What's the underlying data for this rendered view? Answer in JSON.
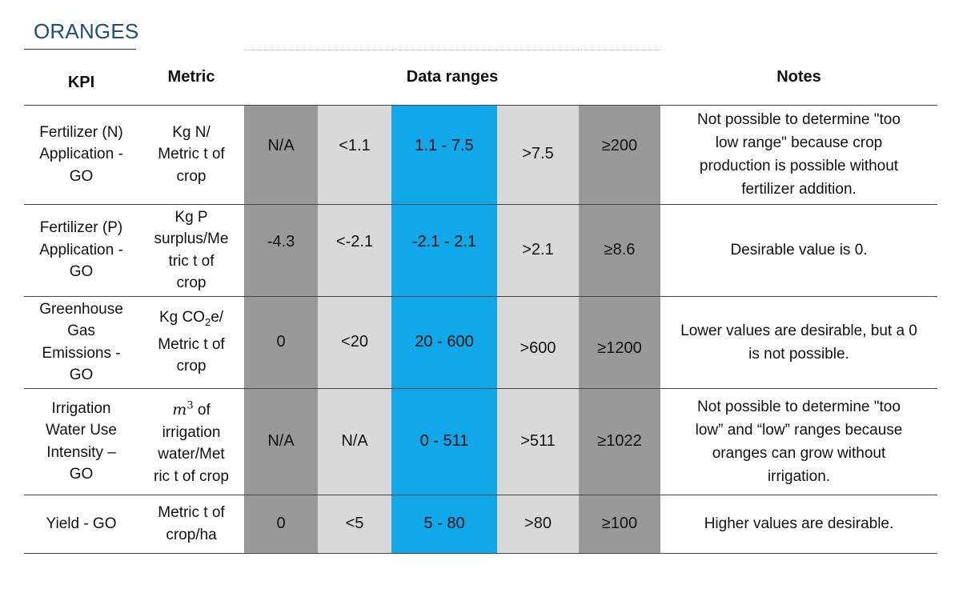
{
  "title": "ORANGES",
  "headers": {
    "kpi": "KPI",
    "metric": "Metric",
    "data_ranges": "Data ranges",
    "notes": "Notes"
  },
  "rows": [
    {
      "kpi": [
        "Fertilizer (N)",
        "Application -",
        "GO"
      ],
      "metric": [
        "Kg N/",
        "Metric t of",
        "crop"
      ],
      "ranges": [
        "N/A",
        "<1.1",
        "1.1 - 7.5",
        ">7.5",
        "≥200"
      ],
      "notes": [
        "Not possible to determine \"too",
        "low range\" because crop",
        "production is possible without",
        "fertilizer addition."
      ]
    },
    {
      "kpi": [
        "Fertilizer (P)",
        "Application -",
        "GO"
      ],
      "metric": [
        "Kg P",
        "surplus/Me",
        "tric t of",
        "crop"
      ],
      "ranges": [
        "-4.3",
        "<-2.1",
        "-2.1 - 2.1",
        ">2.1",
        "≥8.6"
      ],
      "notes": [
        "Desirable value is 0."
      ]
    },
    {
      "kpi": [
        "Greenhouse",
        "Gas",
        "Emissions -",
        "GO"
      ],
      "metric_co2": {
        "a": "Kg CO",
        "sub": "2",
        "b": "e/"
      },
      "metric": [
        "Metric t of",
        "crop"
      ],
      "ranges": [
        "0",
        "<20",
        "20 - 600",
        ">600",
        "≥1200"
      ],
      "notes": [
        "Lower values are desirable, but a 0",
        "is not possible."
      ]
    },
    {
      "kpi": [
        "Irrigation",
        "Water Use",
        "Intensity –",
        "GO"
      ],
      "metric_m3": {
        "base": "m",
        "sup": "3",
        "rest": " of"
      },
      "metric": [
        "irrigation",
        "water/Met",
        "ric t of crop"
      ],
      "ranges": [
        "N/A",
        "N/A",
        "0 - 511",
        ">511",
        "≥1022"
      ],
      "notes": [
        "Not possible to determine \"too",
        "low” and “low” ranges because",
        "oranges can grow without",
        "irrigation."
      ]
    },
    {
      "kpi": [
        "Yield - GO"
      ],
      "metric": [
        "Metric t of",
        "crop/ha"
      ],
      "ranges": [
        "0",
        "<5",
        "5 - 80",
        ">80",
        "≥100"
      ],
      "notes": [
        "Higher values are desirable."
      ]
    }
  ]
}
